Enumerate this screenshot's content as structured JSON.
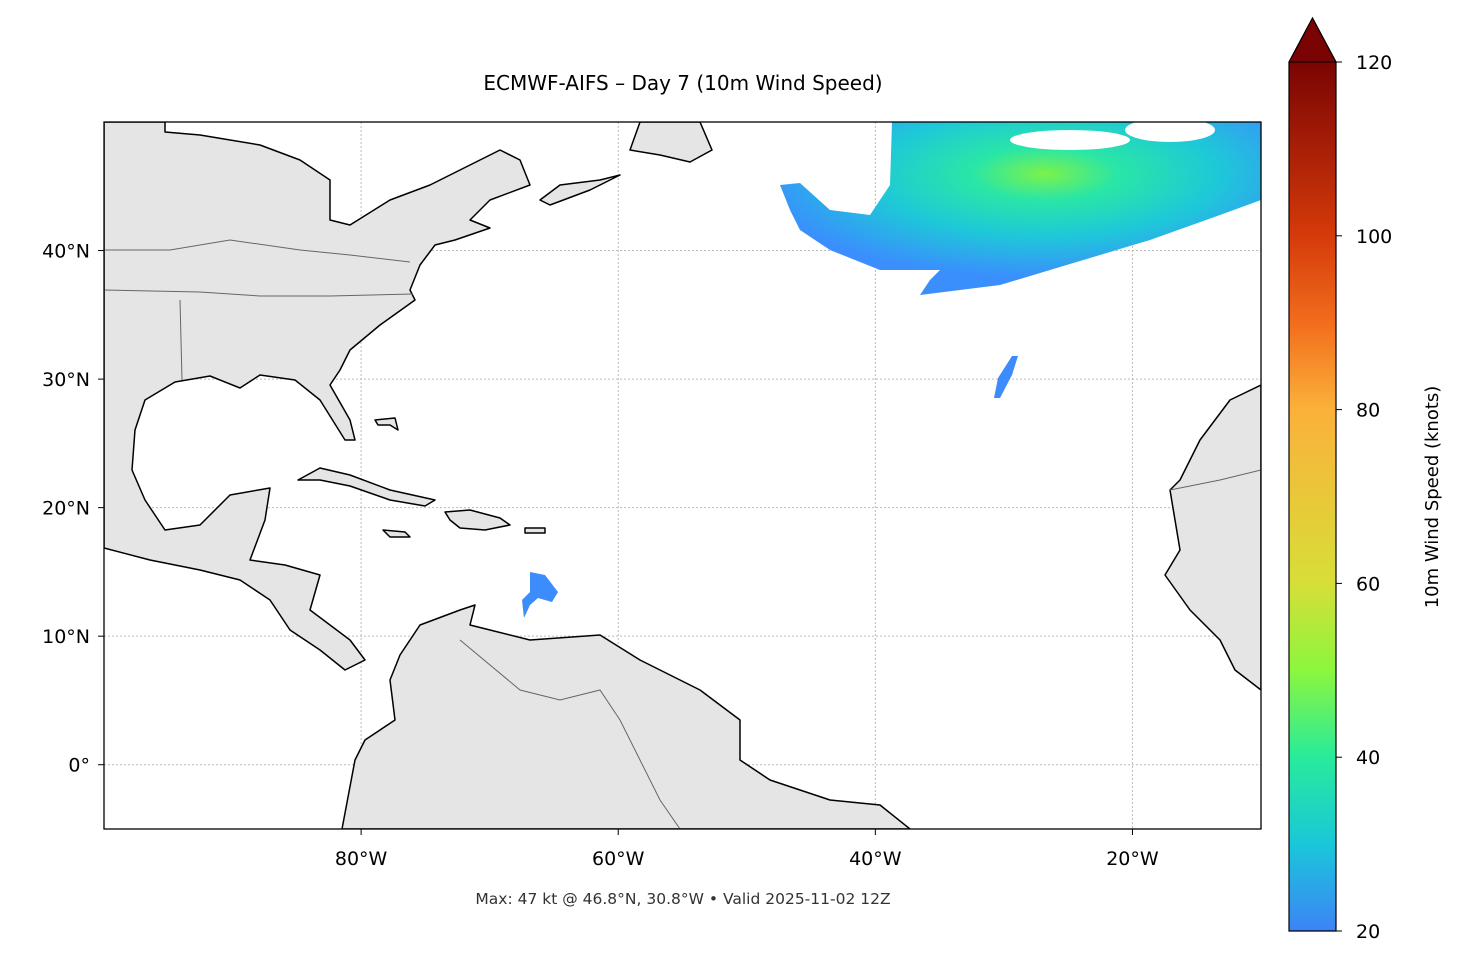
{
  "chart_data": {
    "type": "map",
    "title": "ECMWF-AIFS – Day 7 (10m Wind Speed)",
    "annotation": "Max: 47 kt @ 46.8°N, 30.8°W • Valid 2025-11-02 12Z",
    "xlim": [
      -100,
      -10
    ],
    "ylim": [
      -5,
      50
    ],
    "xticks": [
      {
        "value": -80,
        "label": "80°W"
      },
      {
        "value": -60,
        "label": "60°W"
      },
      {
        "value": -40,
        "label": "40°W"
      },
      {
        "value": -20,
        "label": "20°W"
      }
    ],
    "yticks": [
      {
        "value": 0,
        "label": "0°"
      },
      {
        "value": 10,
        "label": "10°N"
      },
      {
        "value": 20,
        "label": "20°N"
      },
      {
        "value": 30,
        "label": "30°N"
      },
      {
        "value": 40,
        "label": "40°N"
      }
    ],
    "grid": true,
    "colorbar": {
      "label": "10m Wind Speed (knots)",
      "lim": [
        20,
        120
      ],
      "ticks": [
        20,
        40,
        60,
        80,
        100,
        120
      ]
    }
  }
}
